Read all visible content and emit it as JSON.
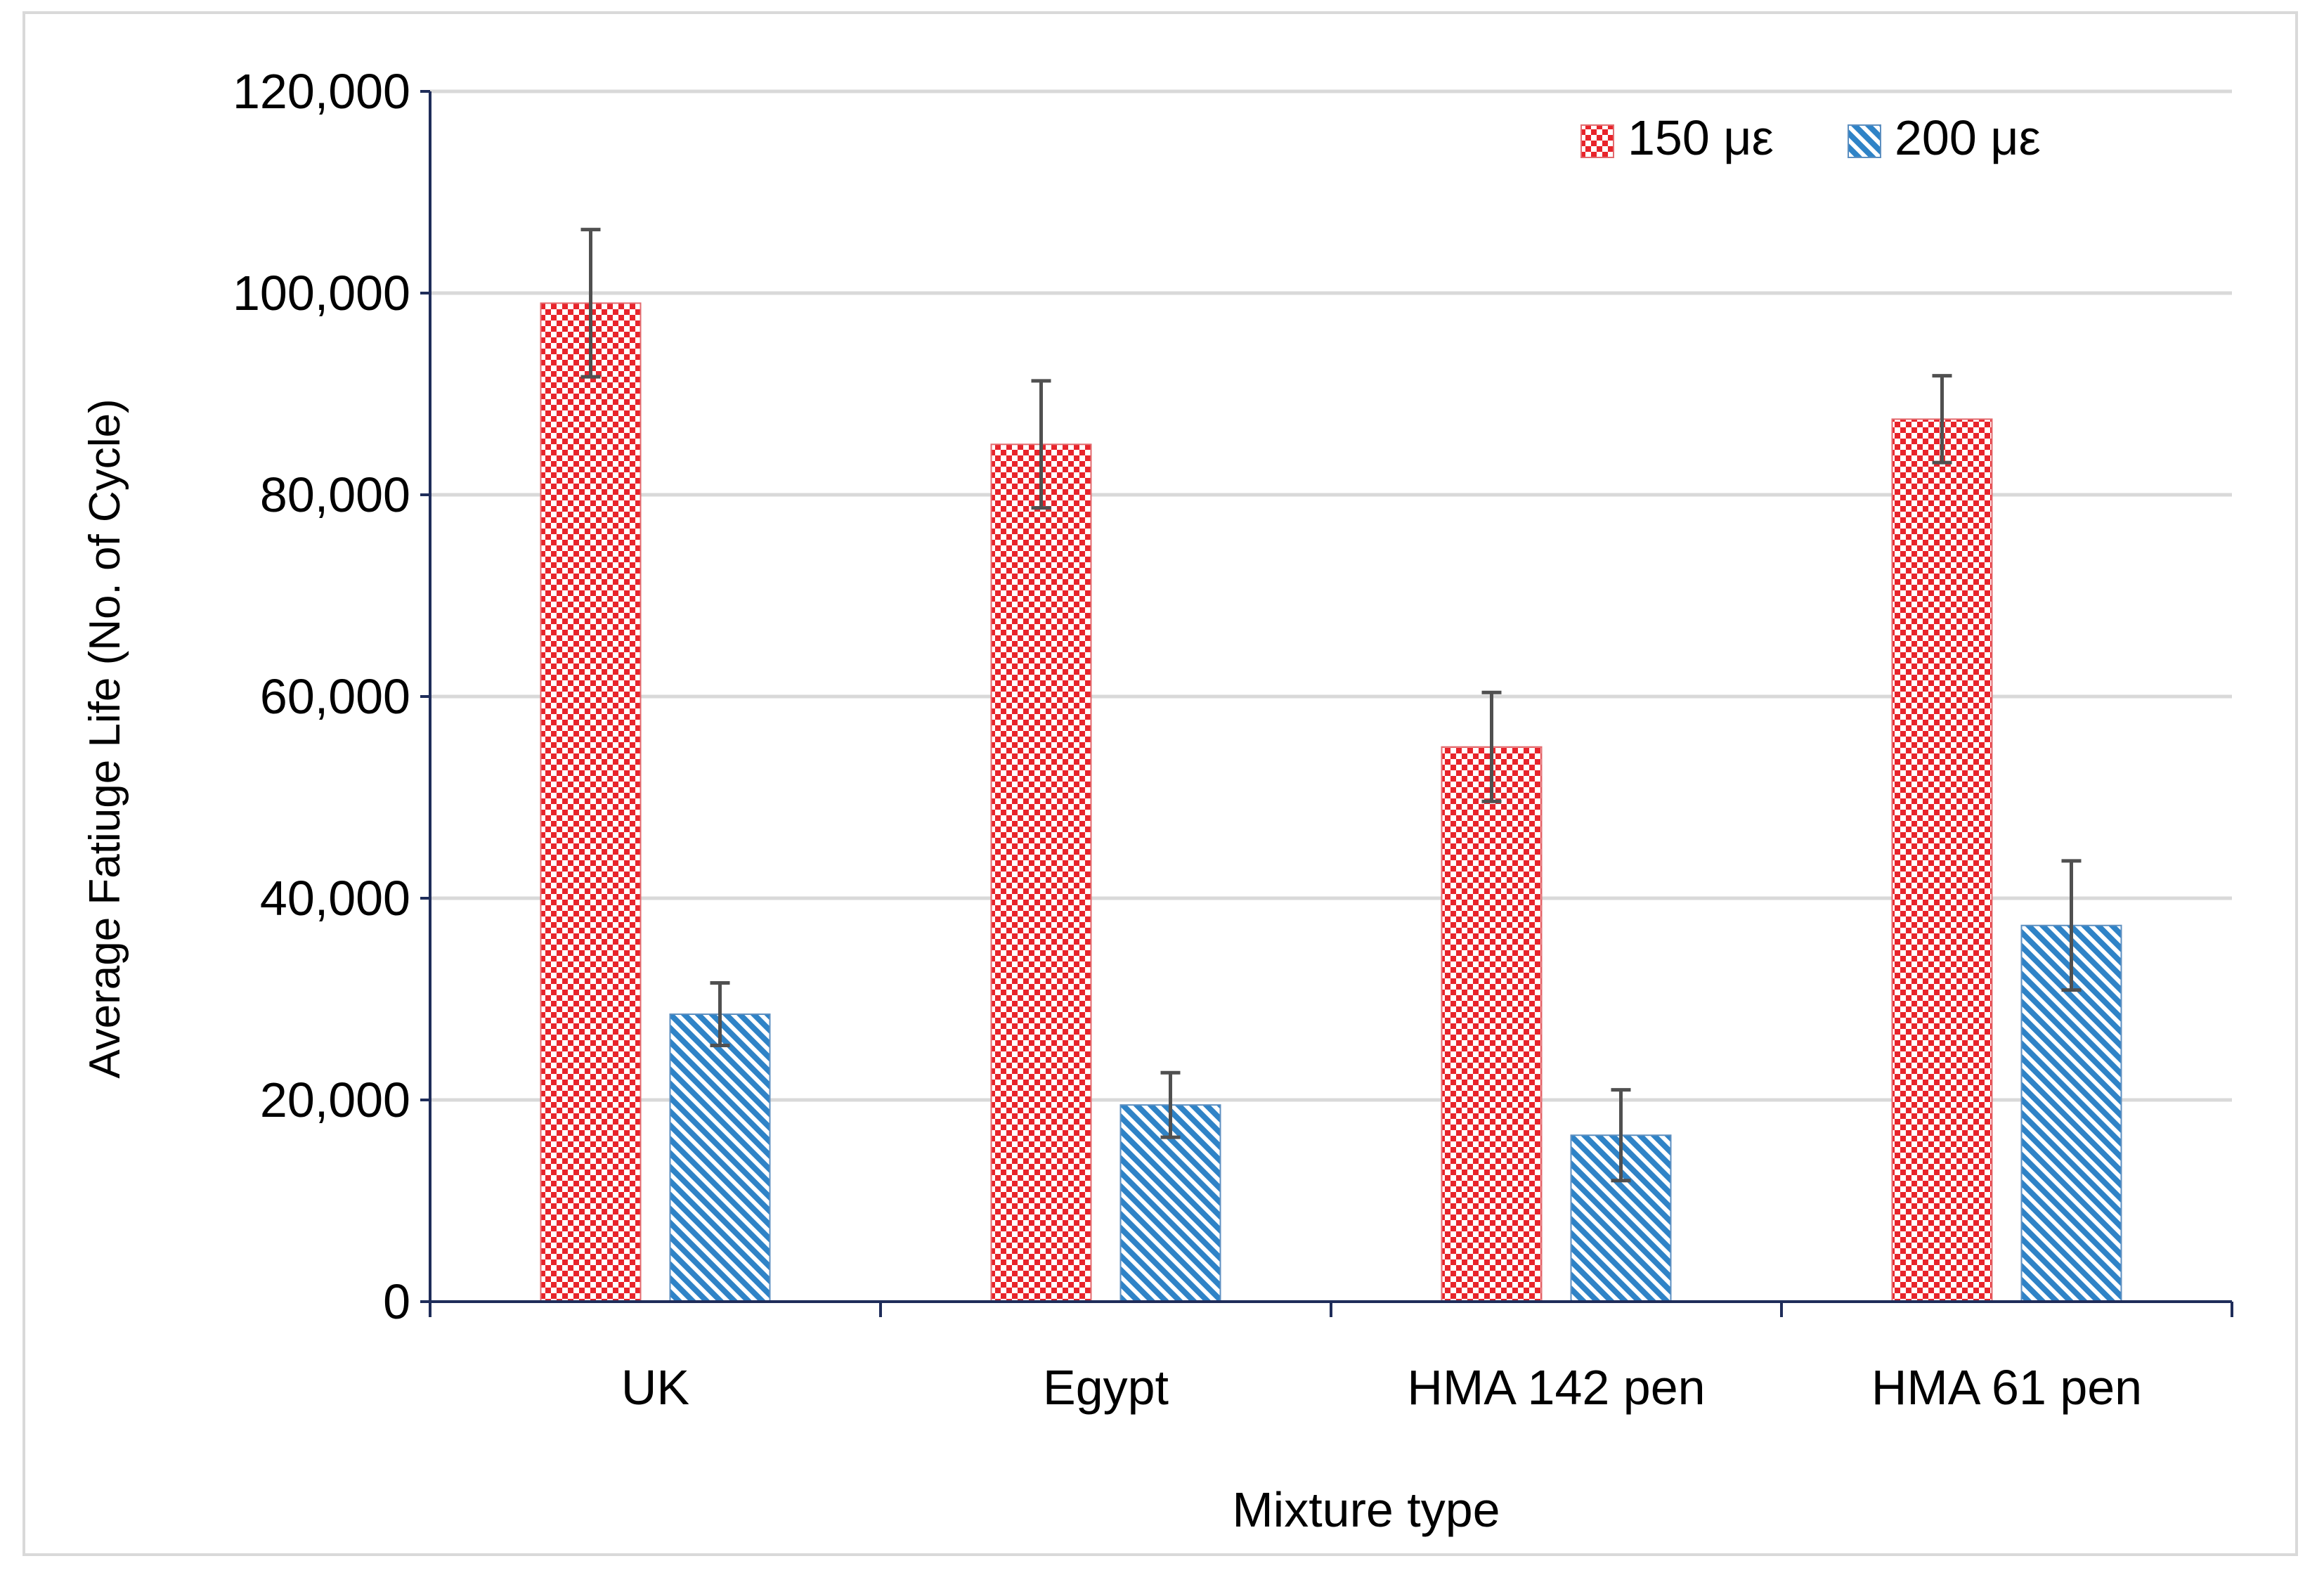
{
  "chart_data": {
    "type": "bar",
    "title": "",
    "xlabel": "Mixture type",
    "ylabel": "Average Fatiuge Life (No. of Cycle)",
    "categories": [
      "UK",
      "Egypt",
      "HMA 142 pen",
      "HMA 61 pen"
    ],
    "series": [
      {
        "name": "150 με",
        "values": [
          99000,
          85000,
          55000,
          87500
        ],
        "error": [
          7300,
          6300,
          5400,
          4300
        ],
        "pattern": "checker",
        "color": "#e8242b"
      },
      {
        "name": "200 με",
        "values": [
          28500,
          19500,
          16500,
          37300
        ],
        "error": [
          3100,
          3200,
          4500,
          6400
        ],
        "pattern": "diagonal",
        "color": "#2f83c7"
      }
    ],
    "ylim": [
      0,
      120000
    ],
    "yticks": [
      0,
      20000,
      40000,
      60000,
      80000,
      100000,
      120000
    ],
    "ytick_labels": [
      "0",
      "20,000",
      "40,000",
      "60,000",
      "80,000",
      "100,000",
      "120,000"
    ],
    "grid": true,
    "legend_position": "top-right"
  }
}
